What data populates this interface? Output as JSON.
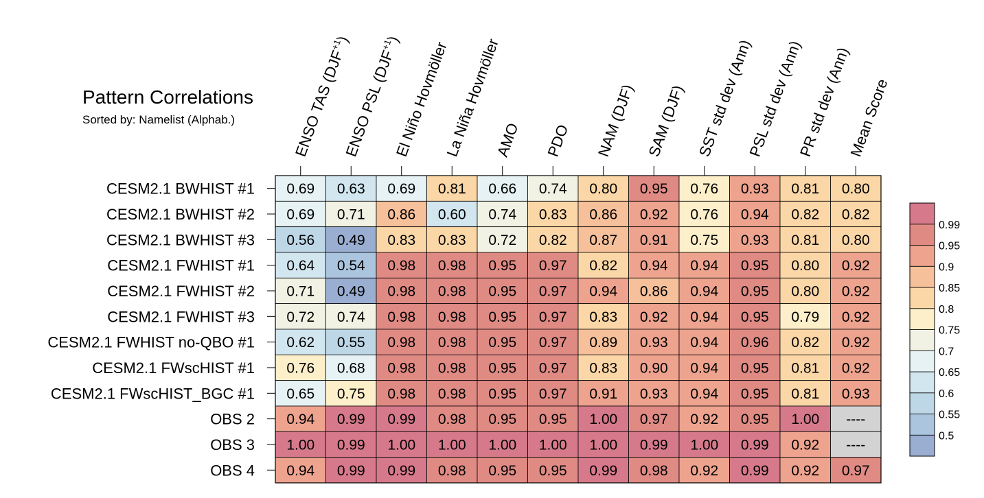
{
  "chart_data": {
    "type": "heatmap",
    "title": "Pattern Correlations",
    "subtitle": "Sorted by: Namelist (Alphab.)",
    "columns": [
      {
        "base": "ENSO TAS (DJF",
        "sup": "+1",
        "tail": ")"
      },
      {
        "base": "ENSO PSL (DJF",
        "sup": "+1",
        "tail": ")"
      },
      {
        "base": "El Niño Hovmöller",
        "sup": "",
        "tail": ""
      },
      {
        "base": "La Niña Hovmöller",
        "sup": "",
        "tail": ""
      },
      {
        "base": "AMO",
        "sup": "",
        "tail": ""
      },
      {
        "base": "PDO",
        "sup": "",
        "tail": ""
      },
      {
        "base": "NAM (DJF)",
        "sup": "",
        "tail": ""
      },
      {
        "base": "SAM (DJF)",
        "sup": "",
        "tail": ""
      },
      {
        "base": "SST std dev (Ann)",
        "sup": "",
        "tail": ""
      },
      {
        "base": "PSL std dev (Ann)",
        "sup": "",
        "tail": ""
      },
      {
        "base": "PR std dev (Ann)",
        "sup": "",
        "tail": ""
      },
      {
        "base": "Mean Score",
        "sup": "",
        "tail": ""
      }
    ],
    "rows": [
      "CESM2.1 BWHIST #1",
      "CESM2.1 BWHIST #2",
      "CESM2.1 BWHIST #3",
      "CESM2.1 FWHIST #1",
      "CESM2.1 FWHIST #2",
      "CESM2.1 FWHIST #3",
      "CESM2.1 FWHIST no-QBO #1",
      "CESM2.1 FWscHIST #1",
      "CESM2.1 FWscHIST_BGC #1",
      "OBS 2",
      "OBS 3",
      "OBS 4"
    ],
    "values": [
      [
        0.69,
        0.63,
        0.69,
        0.81,
        0.66,
        0.74,
        0.8,
        0.95,
        0.76,
        0.93,
        0.81,
        0.8
      ],
      [
        0.69,
        0.71,
        0.86,
        0.6,
        0.74,
        0.83,
        0.86,
        0.92,
        0.76,
        0.94,
        0.82,
        0.82
      ],
      [
        0.56,
        0.49,
        0.83,
        0.83,
        0.72,
        0.82,
        0.87,
        0.91,
        0.75,
        0.93,
        0.81,
        0.8
      ],
      [
        0.64,
        0.54,
        0.98,
        0.98,
        0.95,
        0.97,
        0.82,
        0.94,
        0.94,
        0.95,
        0.8,
        0.92
      ],
      [
        0.71,
        0.49,
        0.98,
        0.98,
        0.95,
        0.97,
        0.94,
        0.86,
        0.94,
        0.95,
        0.8,
        0.92
      ],
      [
        0.72,
        0.74,
        0.98,
        0.98,
        0.95,
        0.97,
        0.83,
        0.92,
        0.94,
        0.95,
        0.79,
        0.92
      ],
      [
        0.62,
        0.55,
        0.98,
        0.98,
        0.95,
        0.97,
        0.89,
        0.93,
        0.94,
        0.96,
        0.82,
        0.92
      ],
      [
        0.76,
        0.68,
        0.98,
        0.98,
        0.95,
        0.97,
        0.83,
        0.9,
        0.94,
        0.95,
        0.81,
        0.92
      ],
      [
        0.65,
        0.75,
        0.98,
        0.98,
        0.95,
        0.97,
        0.91,
        0.93,
        0.94,
        0.95,
        0.81,
        0.93
      ],
      [
        0.94,
        0.99,
        0.99,
        0.98,
        0.95,
        0.95,
        1.0,
        0.97,
        0.92,
        0.95,
        1.0,
        null
      ],
      [
        1.0,
        0.99,
        1.0,
        1.0,
        1.0,
        1.0,
        1.0,
        0.99,
        1.0,
        0.99,
        0.92,
        null
      ],
      [
        0.94,
        0.99,
        0.99,
        0.98,
        0.95,
        0.95,
        0.99,
        0.98,
        0.92,
        0.99,
        0.92,
        0.97
      ]
    ],
    "missing_label": "----",
    "missing_color": "#d3d3d3",
    "colorbar": {
      "labels": [
        "0.99",
        "0.95",
        "0.9",
        "0.85",
        "0.8",
        "0.75",
        "0.7",
        "0.65",
        "0.6",
        "0.55",
        "0.5"
      ],
      "thresholds": [
        0.5,
        0.55,
        0.6,
        0.65,
        0.7,
        0.75,
        0.8,
        0.85,
        0.9,
        0.95,
        0.99
      ],
      "colors": [
        "#9aaed2",
        "#abc5df",
        "#bdd7e7",
        "#d2e6ef",
        "#e6f2f4",
        "#f2f2e4",
        "#fdefc9",
        "#fbd7a7",
        "#f5c09a",
        "#eda38e",
        "#e08a84",
        "#d6798b"
      ]
    }
  }
}
